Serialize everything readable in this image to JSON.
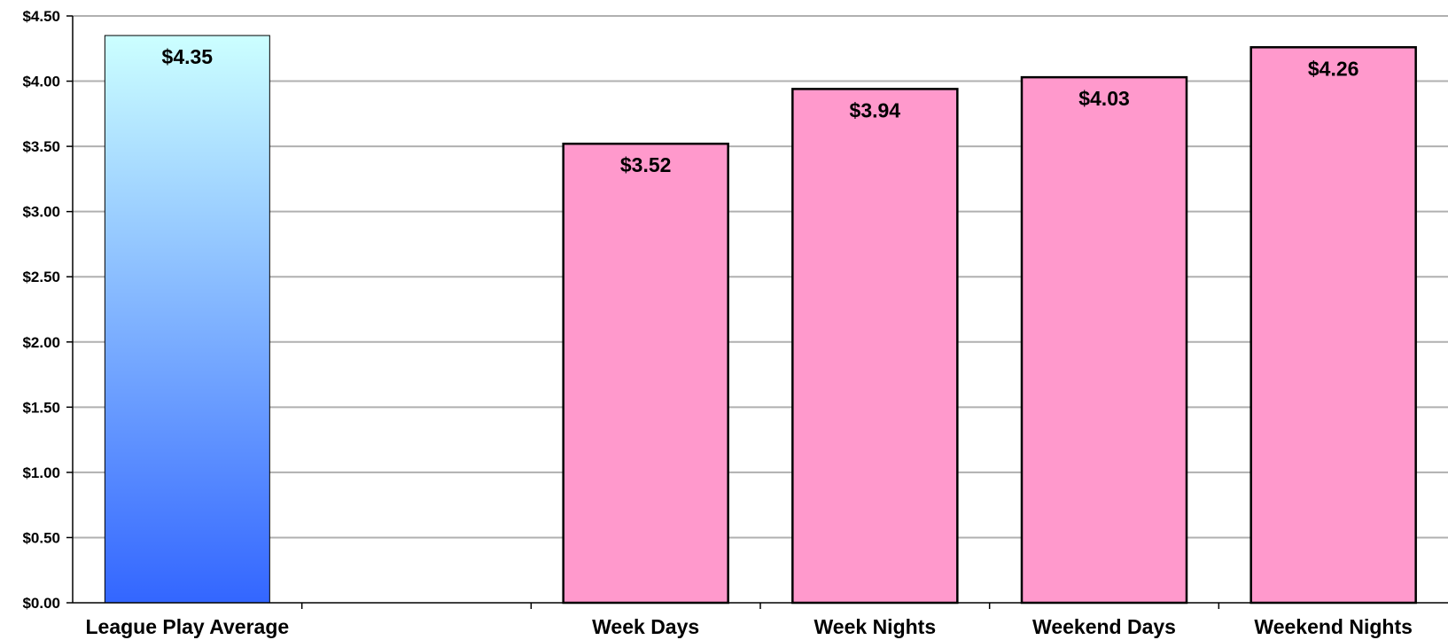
{
  "chart_data": {
    "type": "bar",
    "categories": [
      "League Play Average",
      "",
      "Week Days",
      "Week Nights",
      "Weekend Days",
      "Weekend Nights"
    ],
    "values": [
      4.35,
      null,
      3.52,
      3.94,
      4.03,
      4.26
    ],
    "data_labels": [
      "$4.35",
      "",
      "$3.52",
      "$3.94",
      "$4.03",
      "$4.26"
    ],
    "ylim": [
      0,
      4.5
    ],
    "y_ticks": [
      0,
      0.5,
      1.0,
      1.5,
      2.0,
      2.5,
      3.0,
      3.5,
      4.0,
      4.5
    ],
    "y_tick_labels": [
      "$0.00",
      "$0.50",
      "$1.00",
      "$1.50",
      "$2.00",
      "$2.50",
      "$3.00",
      "$3.50",
      "$4.00",
      "$4.50"
    ],
    "title": "",
    "xlabel": "",
    "ylabel": "",
    "grid": true,
    "legend": "none",
    "colors": {
      "gradient_top": "#ccffff",
      "gradient_bottom": "#3366ff",
      "pink": "#ff99cc",
      "grid": "#b0b0b0",
      "outline": "#000000"
    }
  }
}
